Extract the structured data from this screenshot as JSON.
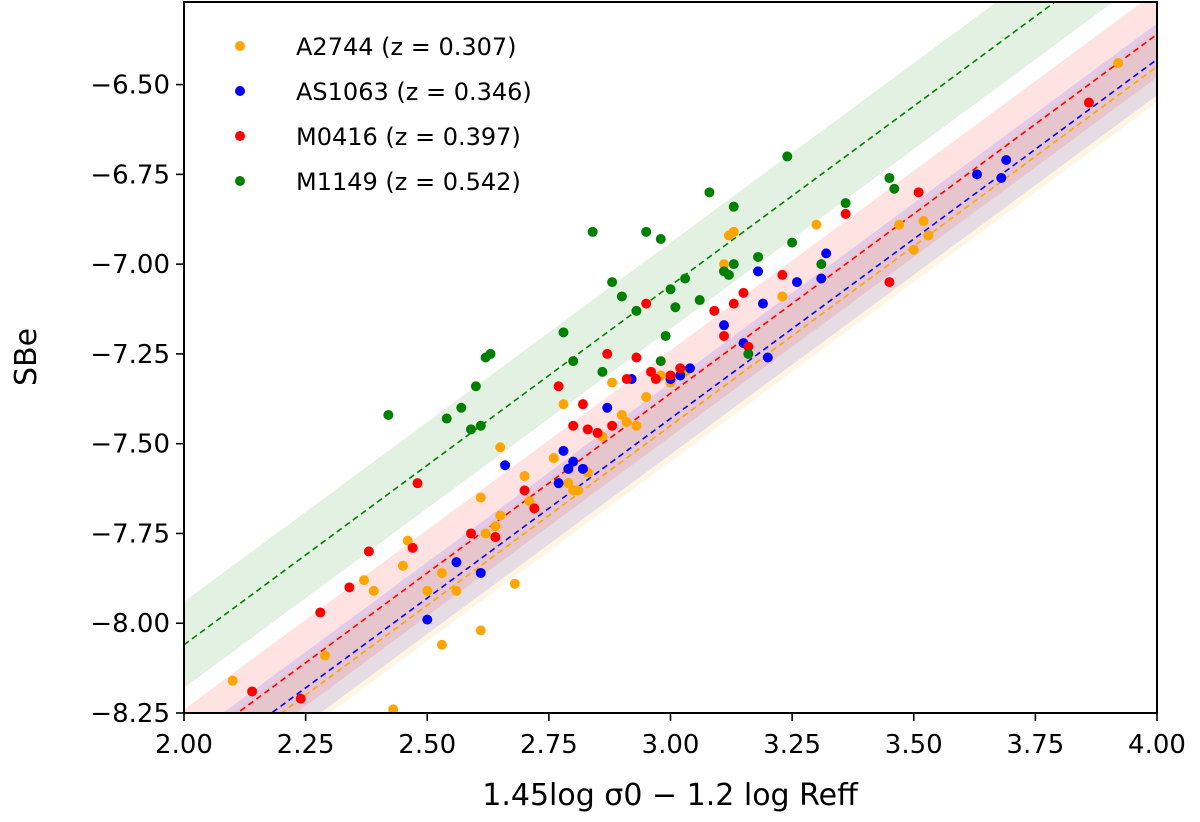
{
  "chart_data": {
    "type": "scatter",
    "xlabel": "1.45log σ0 − 1.2 log Reff",
    "ylabel": "SBe",
    "xlim": [
      2.0,
      4.0
    ],
    "ylim": [
      -8.25,
      -6.27
    ],
    "x_ticks": [
      "2.00",
      "2.25",
      "2.50",
      "2.75",
      "3.00",
      "3.25",
      "3.50",
      "3.75",
      "4.00"
    ],
    "y_ticks": [
      "−6.50",
      "−6.75",
      "−7.00",
      "−7.25",
      "−7.50",
      "−7.75",
      "−8.00",
      "−8.25"
    ],
    "grid": false,
    "legend_position": "top-left",
    "series": [
      {
        "name": "A2744 (z = 0.307)",
        "color": "#ffa500",
        "fit": {
          "slope": 1.0,
          "intercept": -10.45,
          "band": 0.1
        },
        "points": [
          [
            2.1,
            -8.16
          ],
          [
            2.29,
            -8.09
          ],
          [
            2.37,
            -7.88
          ],
          [
            2.39,
            -7.91
          ],
          [
            2.45,
            -7.84
          ],
          [
            2.46,
            -7.77
          ],
          [
            2.43,
            -8.24
          ],
          [
            2.5,
            -7.91
          ],
          [
            2.53,
            -7.86
          ],
          [
            2.53,
            -8.06
          ],
          [
            2.56,
            -7.91
          ],
          [
            2.61,
            -8.02
          ],
          [
            2.61,
            -7.65
          ],
          [
            2.62,
            -7.75
          ],
          [
            2.64,
            -7.73
          ],
          [
            2.65,
            -7.51
          ],
          [
            2.65,
            -7.7
          ],
          [
            2.68,
            -7.89
          ],
          [
            2.7,
            -7.59
          ],
          [
            2.71,
            -7.66
          ],
          [
            2.76,
            -7.54
          ],
          [
            2.78,
            -7.39
          ],
          [
            2.79,
            -7.61
          ],
          [
            2.8,
            -7.63
          ],
          [
            2.81,
            -7.63
          ],
          [
            2.83,
            -7.58
          ],
          [
            2.86,
            -7.48
          ],
          [
            2.88,
            -7.33
          ],
          [
            2.9,
            -7.42
          ],
          [
            2.91,
            -7.44
          ],
          [
            2.93,
            -7.45
          ],
          [
            2.95,
            -7.37
          ],
          [
            2.98,
            -7.31
          ],
          [
            3.0,
            -7.33
          ],
          [
            3.03,
            -7.3
          ],
          [
            3.11,
            -7.0
          ],
          [
            3.12,
            -6.92
          ],
          [
            3.13,
            -6.91
          ],
          [
            3.23,
            -7.09
          ],
          [
            3.3,
            -6.89
          ],
          [
            3.47,
            -6.89
          ],
          [
            3.5,
            -6.96
          ],
          [
            3.52,
            -6.88
          ],
          [
            3.53,
            -6.92
          ],
          [
            3.92,
            -6.44
          ]
        ]
      },
      {
        "name": "AS1063 (z = 0.346)",
        "color": "#0000ff",
        "fit": {
          "slope": 1.0,
          "intercept": -10.43,
          "band": 0.1
        },
        "points": [
          [
            2.5,
            -7.99
          ],
          [
            2.56,
            -7.83
          ],
          [
            2.61,
            -7.86
          ],
          [
            2.66,
            -7.56
          ],
          [
            2.77,
            -7.61
          ],
          [
            2.78,
            -7.52
          ],
          [
            2.79,
            -7.57
          ],
          [
            2.8,
            -7.55
          ],
          [
            2.82,
            -7.57
          ],
          [
            2.87,
            -7.4
          ],
          [
            2.92,
            -7.32
          ],
          [
            3.0,
            -7.32
          ],
          [
            3.02,
            -7.31
          ],
          [
            3.04,
            -7.29
          ],
          [
            3.11,
            -7.17
          ],
          [
            3.15,
            -7.22
          ],
          [
            3.18,
            -7.02
          ],
          [
            3.19,
            -7.11
          ],
          [
            3.2,
            -7.26
          ],
          [
            3.26,
            -7.05
          ],
          [
            3.31,
            -7.04
          ],
          [
            3.32,
            -6.97
          ],
          [
            3.63,
            -6.75
          ],
          [
            3.68,
            -6.76
          ],
          [
            3.69,
            -6.71
          ]
        ]
      },
      {
        "name": "M0416 (z = 0.397)",
        "color": "#ff0000",
        "fit": {
          "slope": 1.0,
          "intercept": -10.36,
          "band": 0.12
        },
        "points": [
          [
            2.14,
            -8.19
          ],
          [
            2.24,
            -8.21
          ],
          [
            2.28,
            -7.97
          ],
          [
            2.34,
            -7.9
          ],
          [
            2.38,
            -7.8
          ],
          [
            2.47,
            -7.79
          ],
          [
            2.48,
            -7.61
          ],
          [
            2.59,
            -7.75
          ],
          [
            2.64,
            -7.76
          ],
          [
            2.7,
            -7.63
          ],
          [
            2.72,
            -7.68
          ],
          [
            2.77,
            -7.34
          ],
          [
            2.8,
            -7.45
          ],
          [
            2.82,
            -7.39
          ],
          [
            2.83,
            -7.46
          ],
          [
            2.85,
            -7.47
          ],
          [
            2.87,
            -7.25
          ],
          [
            2.88,
            -7.45
          ],
          [
            2.91,
            -7.32
          ],
          [
            2.93,
            -7.26
          ],
          [
            2.95,
            -7.11
          ],
          [
            2.96,
            -7.3
          ],
          [
            2.97,
            -7.32
          ],
          [
            3.0,
            -7.31
          ],
          [
            3.02,
            -7.29
          ],
          [
            3.09,
            -7.13
          ],
          [
            3.11,
            -7.2
          ],
          [
            3.13,
            -7.11
          ],
          [
            3.15,
            -7.08
          ],
          [
            3.16,
            -7.23
          ],
          [
            3.23,
            -7.03
          ],
          [
            3.36,
            -6.86
          ],
          [
            3.45,
            -7.05
          ],
          [
            3.51,
            -6.8
          ],
          [
            3.86,
            -6.55
          ]
        ]
      },
      {
        "name": "M1149 (z = 0.542)",
        "color": "#008000",
        "fit": {
          "slope": 1.0,
          "intercept": -10.06,
          "band": 0.12
        },
        "points": [
          [
            2.42,
            -7.42
          ],
          [
            2.54,
            -7.43
          ],
          [
            2.57,
            -7.4
          ],
          [
            2.59,
            -7.46
          ],
          [
            2.6,
            -7.34
          ],
          [
            2.61,
            -7.45
          ],
          [
            2.62,
            -7.26
          ],
          [
            2.63,
            -7.25
          ],
          [
            2.78,
            -7.19
          ],
          [
            2.8,
            -7.27
          ],
          [
            2.84,
            -6.91
          ],
          [
            2.86,
            -7.3
          ],
          [
            2.88,
            -7.05
          ],
          [
            2.9,
            -7.09
          ],
          [
            2.93,
            -7.13
          ],
          [
            2.95,
            -6.91
          ],
          [
            2.98,
            -6.93
          ],
          [
            2.98,
            -7.27
          ],
          [
            2.99,
            -7.2
          ],
          [
            3.0,
            -7.07
          ],
          [
            3.01,
            -7.12
          ],
          [
            3.03,
            -7.04
          ],
          [
            3.06,
            -7.1
          ],
          [
            3.08,
            -6.8
          ],
          [
            3.11,
            -7.02
          ],
          [
            3.12,
            -7.03
          ],
          [
            3.13,
            -6.84
          ],
          [
            3.13,
            -7.0
          ],
          [
            3.16,
            -7.25
          ],
          [
            3.18,
            -6.98
          ],
          [
            3.24,
            -6.7
          ],
          [
            3.25,
            -6.94
          ],
          [
            3.31,
            -7.0
          ],
          [
            3.36,
            -6.83
          ],
          [
            3.45,
            -6.76
          ],
          [
            3.46,
            -6.79
          ]
        ]
      }
    ]
  }
}
